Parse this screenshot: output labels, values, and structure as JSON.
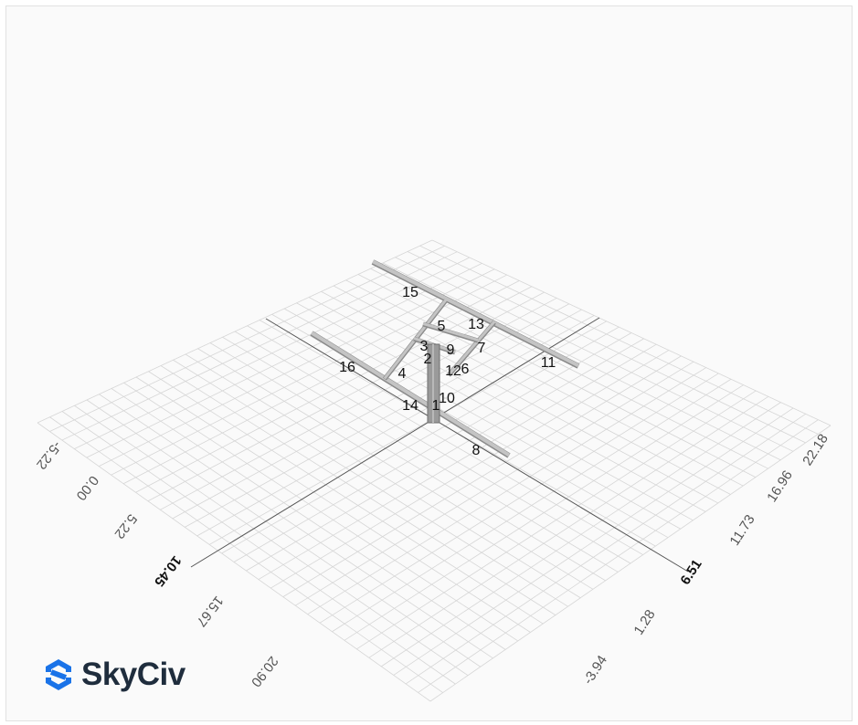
{
  "brand": {
    "name": "SkyCiv",
    "accent": "#1a73e8",
    "text_color": "#1f2d3d"
  },
  "members": [
    {
      "id": "1"
    },
    {
      "id": "2"
    },
    {
      "id": "3"
    },
    {
      "id": "4"
    },
    {
      "id": "5"
    },
    {
      "id": "6"
    },
    {
      "id": "7"
    },
    {
      "id": "8"
    },
    {
      "id": "9"
    },
    {
      "id": "10"
    },
    {
      "id": "11"
    },
    {
      "id": "12"
    },
    {
      "id": "13"
    },
    {
      "id": "14"
    },
    {
      "id": "15"
    },
    {
      "id": "16"
    }
  ],
  "axes": {
    "left_axis_ticks": [
      "-5.22",
      "0.00",
      "5.22",
      "10.45",
      "15.67",
      "20.90"
    ],
    "right_axis_ticks": [
      "22.18",
      "16.96",
      "11.73",
      "6.51",
      "1.28",
      "-3.94"
    ],
    "emphasized_ticks": [
      "10.45",
      "6.51"
    ]
  },
  "colors": {
    "grid": "#d6d6d6",
    "grid_axis": "#555555",
    "member": "#c4c4c4",
    "member_edge": "#8a8a8a",
    "column": "#9a9a9a"
  }
}
